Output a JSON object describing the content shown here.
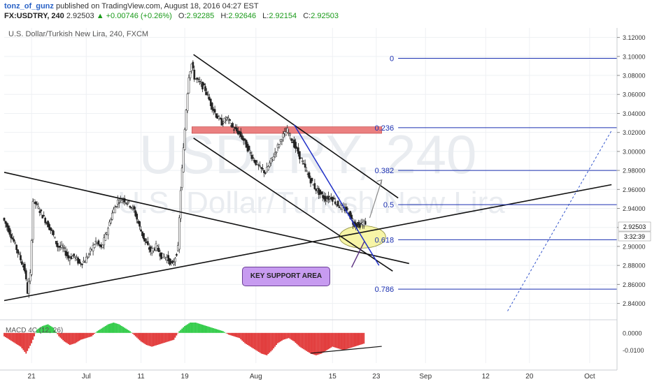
{
  "header": {
    "author": "tonz_of_gunz",
    "published_text": "published on TradingView.com, August 18, 2016 04:27 EST",
    "symbol": "FX:USDTRY, 240",
    "last": "2.92503",
    "change": "▲ +0.00746 (+0.26%)",
    "o_label": "O:",
    "o_value": "2.92285",
    "h_label": "H:",
    "h_value": "2.92646",
    "l_label": "L:",
    "l_value": "2.92154",
    "c_label": "C:",
    "c_value": "2.92503"
  },
  "chart_title": "U.S. Dollar/Turkish New Lira, 240, FXCM",
  "watermark_symbol": "USDTRY, 240",
  "watermark_name": "U.S. Dollar/Turkish New Lira",
  "macd_label": "MACD 4C (12, 26)",
  "annotation": "KEY SUPPORT AREA",
  "price_badge": "2.92503",
  "time_badge": "3:32:39",
  "chart_data": {
    "type": "candlestick",
    "title": "U.S. Dollar/Turkish New Lira, 240, FXCM",
    "x_labels": [
      "21",
      "Jul",
      "11",
      "19",
      "Aug",
      "15",
      "23",
      "Sep",
      "12",
      "20",
      "Oct"
    ],
    "x_label_days": [
      -10,
      0,
      10,
      18,
      31,
      45,
      53,
      62,
      73,
      81,
      92
    ],
    "ylim": [
      2.825,
      3.13
    ],
    "y_ticks": [
      "3.12000",
      "3.10000",
      "3.08000",
      "3.06000",
      "3.04000",
      "3.02000",
      "3.00000",
      "2.98000",
      "2.96000",
      "2.94000",
      "2.92000",
      "2.90000",
      "2.88000",
      "2.86000",
      "2.84000"
    ],
    "price_path": [
      [
        -15,
        2.93
      ],
      [
        -14,
        2.918
      ],
      [
        -13,
        2.905
      ],
      [
        -12,
        2.89
      ],
      [
        -11,
        2.875
      ],
      [
        -10.5,
        2.852
      ],
      [
        -10,
        2.87
      ],
      [
        -9.5,
        2.948
      ],
      [
        -9,
        2.945
      ],
      [
        -8,
        2.935
      ],
      [
        -7,
        2.925
      ],
      [
        -6,
        2.915
      ],
      [
        -5,
        2.9
      ],
      [
        -4,
        2.898
      ],
      [
        -3,
        2.888
      ],
      [
        -2,
        2.89
      ],
      [
        -1,
        2.882
      ],
      [
        0,
        2.885
      ],
      [
        1,
        2.895
      ],
      [
        2,
        2.905
      ],
      [
        3,
        2.898
      ],
      [
        4,
        2.915
      ],
      [
        5,
        2.935
      ],
      [
        6,
        2.948
      ],
      [
        7,
        2.95
      ],
      [
        8,
        2.945
      ],
      [
        9,
        2.938
      ],
      [
        10,
        2.92
      ],
      [
        11,
        2.905
      ],
      [
        12,
        2.895
      ],
      [
        13,
        2.9
      ],
      [
        14,
        2.89
      ],
      [
        15,
        2.888
      ],
      [
        16,
        2.88
      ],
      [
        17,
        2.898
      ],
      [
        17.5,
        2.96
      ],
      [
        18,
        3.002
      ],
      [
        18.5,
        3.045
      ],
      [
        19,
        3.08
      ],
      [
        19.5,
        3.092
      ],
      [
        20,
        3.078
      ],
      [
        21,
        3.072
      ],
      [
        22,
        3.065
      ],
      [
        23,
        3.05
      ],
      [
        24,
        3.038
      ],
      [
        25,
        3.03
      ],
      [
        26,
        3.035
      ],
      [
        27,
        3.025
      ],
      [
        28,
        3.02
      ],
      [
        29,
        3.012
      ],
      [
        30,
        3.0
      ],
      [
        31,
        2.99
      ],
      [
        32,
        2.982
      ],
      [
        33,
        2.978
      ],
      [
        34,
        2.99
      ],
      [
        35,
        3.002
      ],
      [
        36,
        3.015
      ],
      [
        37,
        3.022
      ],
      [
        38,
        3.01
      ],
      [
        39,
        2.998
      ],
      [
        40,
        2.985
      ],
      [
        41,
        2.972
      ],
      [
        42,
        2.962
      ],
      [
        43,
        2.955
      ],
      [
        44,
        2.95
      ],
      [
        45,
        2.952
      ],
      [
        46,
        2.945
      ],
      [
        47,
        2.94
      ],
      [
        48,
        2.938
      ],
      [
        49,
        2.925
      ],
      [
        50,
        2.922
      ],
      [
        51,
        2.925
      ]
    ],
    "trend_lines": [
      {
        "name": "channel-upper",
        "color": "#111111",
        "from": [
          19.6,
          3.102
        ],
        "to": [
          57,
          2.951
        ]
      },
      {
        "name": "channel-lower",
        "color": "#111111",
        "from": [
          19.6,
          3.014
        ],
        "to": [
          56,
          2.874
        ]
      },
      {
        "name": "descending-line",
        "color": "#111111",
        "from": [
          -15,
          2.978
        ],
        "to": [
          59,
          2.882
        ]
      },
      {
        "name": "ascending-line",
        "color": "#111111",
        "from": [
          -15,
          2.843
        ],
        "to": [
          96,
          2.965
        ]
      },
      {
        "name": "blue-trendline",
        "color": "#2030c8",
        "from": [
          38,
          3.028
        ],
        "to": [
          53.5,
          2.88
        ]
      },
      {
        "name": "projection-arrow",
        "color": "#888888",
        "from": [
          51.8,
          2.93
        ],
        "to": [
          54,
          2.97
        ]
      },
      {
        "name": "dashed-projection",
        "color": "#3355cc",
        "from": [
          77,
          2.832
        ],
        "to": [
          96,
          3.022
        ]
      }
    ],
    "resistance_zone": {
      "from_day": 19.3,
      "to_day": 54,
      "y_top": 3.026,
      "y_bottom": 3.019
    },
    "support_ellipse": {
      "center_day": 50.5,
      "center_y": 2.91
    },
    "fibonacci": {
      "levels": [
        {
          "label": "0",
          "value": 3.098
        },
        {
          "label": "0.236",
          "value": 3.025
        },
        {
          "label": "0.382",
          "value": 2.98
        },
        {
          "label": "0.5",
          "value": 2.944
        },
        {
          "label": "0.618",
          "value": 2.907
        },
        {
          "label": "0.786",
          "value": 2.855
        }
      ],
      "start_day": 57,
      "color": "#1a2fb0"
    },
    "macd": {
      "ylim": [
        -0.0175,
        0.006
      ],
      "y_ticks": [
        "0.0000",
        "-0.0100"
      ],
      "histogram": [
        [
          -15,
          -0.002
        ],
        [
          -14,
          -0.004
        ],
        [
          -13,
          -0.006
        ],
        [
          -12,
          -0.008
        ],
        [
          -11,
          -0.012
        ],
        [
          -10,
          -0.006
        ],
        [
          -9,
          0.002
        ],
        [
          -8,
          0.004
        ],
        [
          -7,
          0.005
        ],
        [
          -6,
          0.003
        ],
        [
          -5,
          -0.002
        ],
        [
          -4,
          -0.005
        ],
        [
          -3,
          -0.007
        ],
        [
          -2,
          -0.006
        ],
        [
          -1,
          -0.004
        ],
        [
          0,
          -0.003
        ],
        [
          1,
          -0.002
        ],
        [
          2,
          0.001
        ],
        [
          3,
          0.003
        ],
        [
          4,
          0.005
        ],
        [
          5,
          0.006
        ],
        [
          6,
          0.005
        ],
        [
          7,
          0.003
        ],
        [
          8,
          0.001
        ],
        [
          9,
          -0.002
        ],
        [
          10,
          -0.005
        ],
        [
          11,
          -0.007
        ],
        [
          12,
          -0.008
        ],
        [
          13,
          -0.007
        ],
        [
          14,
          -0.006
        ],
        [
          15,
          -0.005
        ],
        [
          16,
          -0.004
        ],
        [
          17,
          0.001
        ],
        [
          18,
          0.004
        ],
        [
          19,
          0.006
        ],
        [
          20,
          0.006
        ],
        [
          21,
          0.005
        ],
        [
          22,
          0.004
        ],
        [
          23,
          0.003
        ],
        [
          24,
          0.002
        ],
        [
          25,
          0.001
        ],
        [
          26,
          -0.001
        ],
        [
          27,
          -0.002
        ],
        [
          28,
          -0.003
        ],
        [
          29,
          -0.006
        ],
        [
          30,
          -0.008
        ],
        [
          31,
          -0.01
        ],
        [
          32,
          -0.012
        ],
        [
          33,
          -0.013
        ],
        [
          34,
          -0.01
        ],
        [
          35,
          -0.006
        ],
        [
          36,
          -0.004
        ],
        [
          37,
          -0.003
        ],
        [
          38,
          -0.005
        ],
        [
          39,
          -0.008
        ],
        [
          40,
          -0.01
        ],
        [
          41,
          -0.012
        ],
        [
          42,
          -0.013
        ],
        [
          43,
          -0.012
        ],
        [
          44,
          -0.01
        ],
        [
          45,
          -0.008
        ],
        [
          46,
          -0.009
        ],
        [
          47,
          -0.01
        ],
        [
          48,
          -0.009
        ],
        [
          49,
          -0.008
        ],
        [
          50,
          -0.007
        ],
        [
          51,
          -0.006
        ]
      ],
      "divergence_line": {
        "from": [
          41,
          -0.0118
        ],
        "to": [
          54,
          -0.0078
        ]
      }
    }
  }
}
